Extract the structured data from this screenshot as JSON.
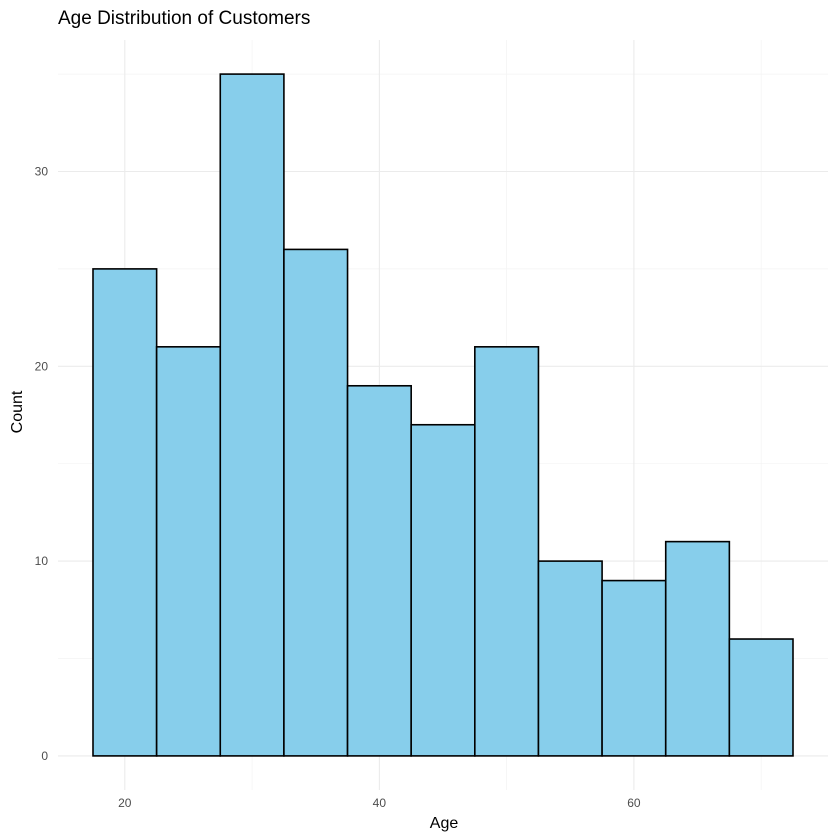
{
  "chart_data": {
    "type": "bar",
    "title": "Age Distribution of Customers",
    "xlabel": "Age",
    "ylabel": "Count",
    "bin_width": 5,
    "bins": [
      {
        "start": 17.5,
        "end": 22.5,
        "count": 25
      },
      {
        "start": 22.5,
        "end": 27.5,
        "count": 21
      },
      {
        "start": 27.5,
        "end": 32.5,
        "count": 35
      },
      {
        "start": 32.5,
        "end": 37.5,
        "count": 26
      },
      {
        "start": 37.5,
        "end": 42.5,
        "count": 19
      },
      {
        "start": 42.5,
        "end": 47.5,
        "count": 17
      },
      {
        "start": 47.5,
        "end": 52.5,
        "count": 21
      },
      {
        "start": 52.5,
        "end": 57.5,
        "count": 10
      },
      {
        "start": 57.5,
        "end": 62.5,
        "count": 9
      },
      {
        "start": 62.5,
        "end": 67.5,
        "count": 11
      },
      {
        "start": 67.5,
        "end": 72.5,
        "count": 6
      }
    ],
    "xlim": [
      14.75,
      75.25
    ],
    "ylim": [
      -1.75,
      36.75
    ],
    "x_ticks": [
      20,
      40,
      60
    ],
    "y_ticks": [
      0,
      10,
      20,
      30
    ],
    "grid": true,
    "bar_fill": "#87ceeb",
    "bar_outline": "#000000"
  }
}
